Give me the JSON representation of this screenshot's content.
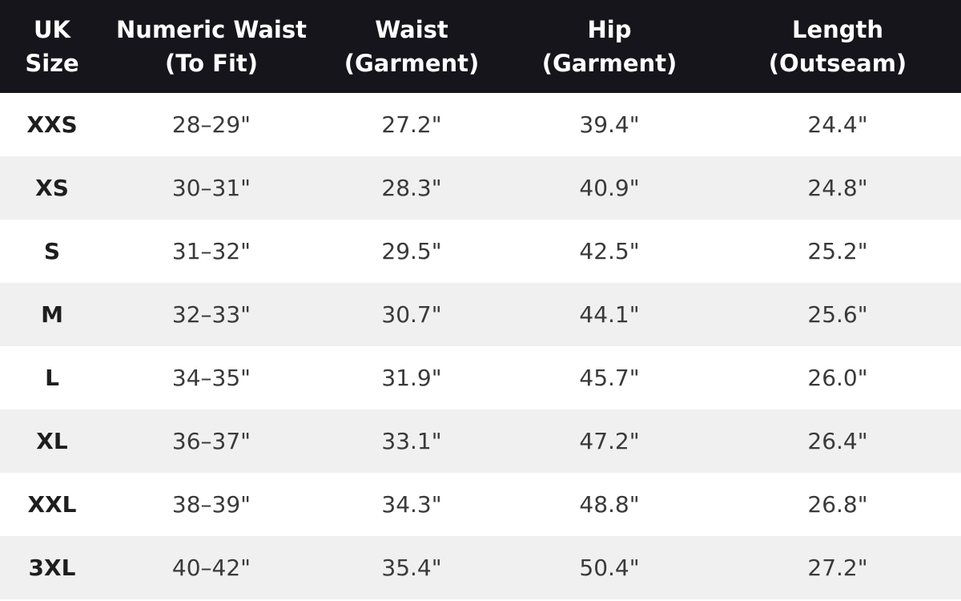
{
  "colors": {
    "header_bg": "#15151b",
    "header_text": "#ffffff",
    "row_even_bg": "#ffffff",
    "row_odd_bg": "#f0f0f0",
    "cell_text": "#3a3a3a",
    "size_text": "#1e1e1e"
  },
  "table": {
    "headers": [
      {
        "line1": "UK",
        "line2": "Size"
      },
      {
        "line1": "Numeric Waist",
        "line2": "(To Fit)"
      },
      {
        "line1": "Waist",
        "line2": "(Garment)"
      },
      {
        "line1": "Hip",
        "line2": "(Garment)"
      },
      {
        "line1": "Length",
        "line2": "(Outseam)"
      }
    ],
    "rows": [
      [
        "XXS",
        "28–29\"",
        "27.2\"",
        "39.4\"",
        "24.4\""
      ],
      [
        "XS",
        "30–31\"",
        "28.3\"",
        "40.9\"",
        "24.8\""
      ],
      [
        "S",
        "31–32\"",
        "29.5\"",
        "42.5\"",
        "25.2\""
      ],
      [
        "M",
        "32–33\"",
        "30.7\"",
        "44.1\"",
        "25.6\""
      ],
      [
        "L",
        "34–35\"",
        "31.9\"",
        "45.7\"",
        "26.0\""
      ],
      [
        "XL",
        "36–37\"",
        "33.1\"",
        "47.2\"",
        "26.4\""
      ],
      [
        "XXL",
        "38–39\"",
        "34.3\"",
        "48.8\"",
        "26.8\""
      ],
      [
        "3XL",
        "40–42\"",
        "35.4\"",
        "50.4\"",
        "27.2\""
      ]
    ]
  }
}
